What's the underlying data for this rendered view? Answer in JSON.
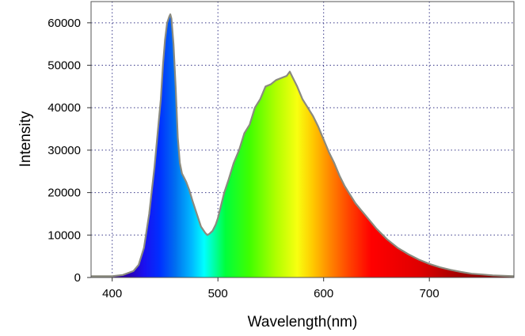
{
  "chart_data": {
    "type": "area",
    "title": "",
    "xlabel": "Wavelength(nm)",
    "ylabel": "Intensity",
    "xlim": [
      380,
      780
    ],
    "ylim": [
      0,
      65000
    ],
    "x_ticks": [
      400,
      500,
      600,
      700
    ],
    "y_ticks": [
      0,
      10000,
      20000,
      30000,
      40000,
      50000,
      60000
    ],
    "x_tick_labels": [
      "400",
      "500",
      "600",
      "700"
    ],
    "y_tick_labels": [
      "0",
      "10000",
      "20000",
      "30000",
      "40000",
      "50000",
      "60000"
    ],
    "grid": true,
    "fill": "visible-spectrum",
    "line_color": "#8a8a7e",
    "series": [
      {
        "x": [
          380,
          400,
          410,
          420,
          425,
          430,
          435,
          440,
          443,
          446,
          448,
          450,
          452,
          454,
          455,
          456,
          458,
          460,
          462,
          464,
          466,
          468,
          470,
          473,
          476,
          480,
          484,
          488,
          490,
          492,
          495,
          498,
          500,
          503,
          506,
          510,
          515,
          520,
          525,
          530,
          535,
          540,
          545,
          550,
          555,
          560,
          565,
          568,
          570,
          575,
          580,
          585,
          590,
          595,
          600,
          605,
          610,
          615,
          620,
          625,
          630,
          635,
          640,
          650,
          660,
          670,
          680,
          690,
          700,
          710,
          720,
          730,
          740,
          750,
          760,
          770,
          780
        ],
        "y": [
          300,
          300,
          600,
          1500,
          3000,
          7000,
          15000,
          26000,
          34000,
          42000,
          50000,
          56000,
          60000,
          61500,
          62000,
          61000,
          55000,
          45000,
          33000,
          27000,
          24500,
          23500,
          22500,
          20500,
          18000,
          15000,
          12000,
          10500,
          10000,
          10300,
          11000,
          12500,
          14000,
          17000,
          20000,
          23000,
          27000,
          30000,
          34000,
          36000,
          40000,
          42000,
          45000,
          45500,
          46500,
          47000,
          47500,
          48500,
          47500,
          45000,
          42000,
          40000,
          38000,
          35500,
          32500,
          29500,
          27000,
          24000,
          21500,
          19500,
          17500,
          16000,
          14500,
          11500,
          9000,
          7000,
          5500,
          4200,
          3200,
          2400,
          1800,
          1300,
          900,
          700,
          500,
          400,
          300
        ]
      }
    ]
  }
}
